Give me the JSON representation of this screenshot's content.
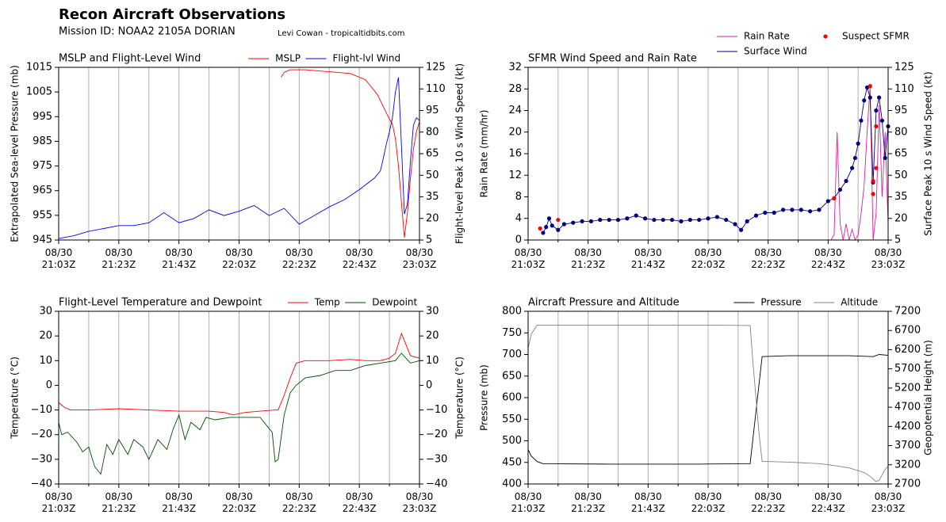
{
  "header": {
    "title": "Recon Aircraft Observations",
    "subtitle": "Mission ID: NOAA2 2105A DORIAN",
    "credit": "Levi Cowan - tropicaltidbits.com"
  },
  "chart_data": [
    {
      "type": "line",
      "title": "MSLP and Flight-Level Wind",
      "ylabel": "Extrapolated Sea-level Pressure (mb)",
      "y2label": "Flight-level Peak 10 s Wind Speed (kt)",
      "legend": "upper right",
      "grid": true,
      "xlim": [
        "21:03",
        "23:03"
      ],
      "xticks": [
        {
          "value": "21:03",
          "label": "08/30 21:03Z"
        },
        {
          "value": "21:23",
          "label": "08/30 21:23Z"
        },
        {
          "value": "21:43",
          "label": "08/30 21:43Z"
        },
        {
          "value": "22:03",
          "label": "08/30 22:03Z"
        },
        {
          "value": "22:23",
          "label": "08/30 22:23Z"
        },
        {
          "value": "22:43",
          "label": "08/30 22:43Z"
        },
        {
          "value": "23:03",
          "label": "08/30 23:03Z"
        }
      ],
      "xminor": [
        "21:13",
        "21:33",
        "21:53",
        "22:13",
        "22:33",
        "22:53"
      ],
      "ylim": [
        945,
        1015
      ],
      "yticks": [
        945,
        955,
        965,
        975,
        985,
        995,
        1005,
        1015
      ],
      "y2lim": [
        5,
        125
      ],
      "y2ticks": [
        5,
        20,
        35,
        50,
        65,
        80,
        95,
        110,
        125
      ],
      "series": [
        {
          "name": "MSLP",
          "color": "#ff0000",
          "x": [
            "22:17",
            "22:18",
            "22:20",
            "22:25",
            "22:30",
            "22:35",
            "22:40",
            "22:45",
            "22:47",
            "22:49",
            "22:51",
            "22:53",
            "22:54",
            "22:55",
            "22:56",
            "22:57",
            "22:58",
            "22:59",
            "23:00",
            "23:01",
            "23:02",
            "23:03"
          ],
          "values": [
            1011,
            1013,
            1014,
            1014,
            1013.5,
            1013,
            1012.5,
            1010,
            1007,
            1004,
            999,
            994,
            992,
            986,
            975,
            960,
            946,
            956,
            970,
            982,
            989,
            993
          ]
        },
        {
          "name": "Flight-lvl Wind",
          "color": "#0000ff",
          "axis": "y2",
          "x": [
            "21:03",
            "21:08",
            "21:13",
            "21:18",
            "21:23",
            "21:28",
            "21:33",
            "21:38",
            "21:43",
            "21:48",
            "21:53",
            "21:58",
            "22:03",
            "22:08",
            "22:13",
            "22:18",
            "22:23",
            "22:28",
            "22:33",
            "22:38",
            "22:43",
            "22:48",
            "22:50",
            "22:51",
            "22:52",
            "22:53",
            "22:54",
            "22:55",
            "22:56",
            "22:57",
            "22:58",
            "22:59",
            "23:00",
            "23:01",
            "23:02",
            "23:03"
          ],
          "values": [
            6,
            8,
            11,
            13,
            15,
            15,
            17,
            24,
            17,
            20,
            26,
            22,
            25,
            29,
            22,
            27,
            16,
            22,
            28,
            33,
            40,
            48,
            53,
            62,
            72,
            80,
            90,
            108,
            118,
            70,
            23,
            30,
            60,
            85,
            90,
            88
          ]
        }
      ]
    },
    {
      "type": "line",
      "title": "SFMR Wind Speed and Rain Rate",
      "ylabel": "Rain Rate (mm/hr)",
      "y2label": "Surface Peak 10 s Wind Speed (kt)",
      "legend": "top outside",
      "grid": true,
      "xlim": [
        "21:03",
        "23:03"
      ],
      "xticks": [
        {
          "value": "21:03",
          "label": "08/30 21:03Z"
        },
        {
          "value": "21:23",
          "label": "08/30 21:23Z"
        },
        {
          "value": "21:43",
          "label": "08/30 21:43Z"
        },
        {
          "value": "22:03",
          "label": "08/30 22:03Z"
        },
        {
          "value": "22:23",
          "label": "08/30 22:23Z"
        },
        {
          "value": "22:43",
          "label": "08/30 22:43Z"
        },
        {
          "value": "23:03",
          "label": "08/30 23:03Z"
        }
      ],
      "xminor": [
        "21:13",
        "21:33",
        "21:53",
        "22:13",
        "22:33",
        "22:53"
      ],
      "ylim": [
        0,
        32
      ],
      "yticks": [
        0,
        4,
        8,
        12,
        16,
        20,
        24,
        28,
        32
      ],
      "y2lim": [
        5,
        125
      ],
      "y2ticks": [
        5,
        20,
        35,
        50,
        65,
        80,
        95,
        110,
        125
      ],
      "series": [
        {
          "name": "Rain Rate",
          "color": "#dd1fa0",
          "x": [
            "21:08",
            "22:40",
            "22:44",
            "22:45",
            "22:46",
            "22:47",
            "22:48",
            "22:49",
            "22:50",
            "22:51",
            "22:52",
            "22:53",
            "22:54",
            "22:55",
            "22:56",
            "22:57",
            "22:58",
            "22:59",
            "23:00",
            "23:01",
            "23:02",
            "23:03"
          ],
          "values": [
            0,
            0,
            0,
            1,
            20,
            3,
            0,
            3,
            0,
            2,
            0,
            1,
            5,
            10,
            20,
            28.5,
            0,
            5,
            25,
            8,
            20,
            3
          ]
        },
        {
          "name": "Surface Wind",
          "color": "#000080",
          "axis": "y2",
          "markers": true,
          "x": [
            "21:08",
            "21:09",
            "21:10",
            "21:11",
            "21:13",
            "21:15",
            "21:18",
            "21:21",
            "21:24",
            "21:27",
            "21:30",
            "21:33",
            "21:36",
            "21:39",
            "21:42",
            "21:45",
            "21:48",
            "21:51",
            "21:54",
            "21:57",
            "22:00",
            "22:03",
            "22:06",
            "22:09",
            "22:12",
            "22:14",
            "22:16",
            "22:19",
            "22:22",
            "22:25",
            "22:28",
            "22:31",
            "22:34",
            "22:37",
            "22:40",
            "22:43",
            "22:45",
            "22:47",
            "22:49",
            "22:51",
            "22:52",
            "22:53",
            "22:54",
            "22:55",
            "22:56",
            "22:57",
            "22:58",
            "22:59",
            "23:00",
            "23:01",
            "23:02",
            "23:03"
          ],
          "values": [
            10,
            14,
            20,
            15,
            12,
            16,
            17,
            18,
            18,
            19,
            19,
            19,
            20,
            22,
            20,
            19,
            19,
            19,
            18,
            19,
            19,
            20,
            21,
            19,
            16,
            12,
            18,
            22,
            24,
            24,
            26,
            26,
            26,
            25,
            26,
            32,
            34,
            40,
            46,
            55,
            62,
            72,
            88,
            102,
            111,
            104,
            45,
            95,
            104,
            88,
            62,
            84
          ]
        },
        {
          "name": "Suspect SFMR",
          "color": "#ff0000",
          "axis": "y2",
          "line": false,
          "markers": true,
          "x": [
            "21:07",
            "21:13",
            "22:45",
            "22:57",
            "22:58",
            "22:58",
            "22:59",
            "22:59"
          ],
          "values": [
            13,
            19,
            34,
            112,
            46,
            37,
            55,
            84
          ]
        }
      ]
    },
    {
      "type": "line",
      "title": "Flight-Level Temperature and Dewpoint",
      "ylabel": "Temperature (°C)",
      "y2label": "Temperature (°C)",
      "legend": "upper right",
      "grid": true,
      "xlim": [
        "21:03",
        "23:03"
      ],
      "xticks": [
        {
          "value": "21:03",
          "label": "08/30 21:03Z"
        },
        {
          "value": "21:23",
          "label": "08/30 21:23Z"
        },
        {
          "value": "21:43",
          "label": "08/30 21:43Z"
        },
        {
          "value": "22:03",
          "label": "08/30 22:03Z"
        },
        {
          "value": "22:23",
          "label": "08/30 22:23Z"
        },
        {
          "value": "22:43",
          "label": "08/30 22:43Z"
        },
        {
          "value": "23:03",
          "label": "08/30 23:03Z"
        }
      ],
      "xminor": [
        "21:13",
        "21:33",
        "21:53",
        "22:13",
        "22:33",
        "22:53"
      ],
      "ylim": [
        -40,
        30
      ],
      "yticks": [
        {
          "value": -40,
          "label": "−40"
        },
        {
          "value": -30,
          "label": "−30"
        },
        {
          "value": -20,
          "label": "−20"
        },
        {
          "value": -10,
          "label": "−10"
        },
        0,
        10,
        20,
        30
      ],
      "y2lim": [
        -40,
        30
      ],
      "y2ticks": [
        {
          "value": -40,
          "label": "−40"
        },
        {
          "value": -30,
          "label": "−30"
        },
        {
          "value": -20,
          "label": "−20"
        },
        {
          "value": -10,
          "label": "−10"
        },
        0,
        10,
        20,
        30
      ],
      "series": [
        {
          "name": "Temp",
          "color": "#ff0000",
          "x": [
            "21:03",
            "21:05",
            "21:07",
            "21:13",
            "21:23",
            "21:33",
            "21:43",
            "21:53",
            "21:58",
            "22:01",
            "22:05",
            "22:10",
            "22:15",
            "22:16",
            "22:18",
            "22:20",
            "22:22",
            "22:25",
            "22:33",
            "22:40",
            "22:45",
            "22:50",
            "22:53",
            "22:55",
            "22:57",
            "22:59",
            "23:00",
            "23:03"
          ],
          "values": [
            -7,
            -9,
            -10,
            -10,
            -9.5,
            -10,
            -10.5,
            -10.5,
            -11,
            -12,
            -11,
            -10.5,
            -10,
            -10,
            -4,
            3,
            9,
            10,
            10,
            10.5,
            10,
            10,
            11,
            13,
            21,
            15,
            12,
            11
          ]
        },
        {
          "name": "Dewpoint",
          "color": "#004d00",
          "x": [
            "21:03",
            "21:04",
            "21:06",
            "21:09",
            "21:11",
            "21:13",
            "21:15",
            "21:17",
            "21:19",
            "21:21",
            "21:23",
            "21:26",
            "21:28",
            "21:31",
            "21:33",
            "21:36",
            "21:39",
            "21:41",
            "21:43",
            "21:45",
            "21:47",
            "21:50",
            "21:52",
            "21:55",
            "22:00",
            "22:05",
            "22:10",
            "22:12",
            "22:14",
            "22:15",
            "22:16",
            "22:18",
            "22:20",
            "22:22",
            "22:25",
            "22:30",
            "22:35",
            "22:40",
            "22:45",
            "22:50",
            "22:55",
            "22:57",
            "23:00",
            "23:03"
          ],
          "values": [
            -15,
            -20,
            -19,
            -23,
            -27,
            -25,
            -33,
            -36,
            -24,
            -28,
            -22,
            -28,
            -22,
            -25,
            -30,
            -22,
            -26,
            -18,
            -12,
            -22,
            -15,
            -18,
            -13,
            -14,
            -13,
            -13,
            -13,
            -16,
            -19,
            -31,
            -30,
            -12,
            -3,
            0,
            3,
            4,
            6,
            6,
            8,
            9,
            10,
            13,
            9,
            10
          ]
        }
      ]
    },
    {
      "type": "line",
      "title": "Aircraft Pressure and Altitude",
      "ylabel": "Pressure (mb)",
      "y2label": "Geopotential Height (m)",
      "legend": "upper right",
      "grid": true,
      "xlim": [
        "21:03",
        "23:03"
      ],
      "xticks": [
        {
          "value": "21:03",
          "label": "08/30 21:03Z"
        },
        {
          "value": "21:23",
          "label": "08/30 21:23Z"
        },
        {
          "value": "21:43",
          "label": "08/30 21:43Z"
        },
        {
          "value": "22:03",
          "label": "08/30 22:03Z"
        },
        {
          "value": "22:23",
          "label": "08/30 22:23Z"
        },
        {
          "value": "22:43",
          "label": "08/30 22:43Z"
        },
        {
          "value": "23:03",
          "label": "08/30 23:03Z"
        }
      ],
      "xminor": [
        "21:13",
        "21:33",
        "21:53",
        "22:13",
        "22:33",
        "22:53"
      ],
      "ylim": [
        400,
        800
      ],
      "yticks": [
        400,
        450,
        500,
        550,
        600,
        650,
        700,
        750,
        800
      ],
      "y2lim": [
        2700,
        7200
      ],
      "y2ticks": [
        2700,
        3200,
        3700,
        4200,
        4700,
        5200,
        5700,
        6200,
        6700,
        7200
      ],
      "series": [
        {
          "name": "Pressure",
          "color": "#000000",
          "x": [
            "21:03",
            "21:04",
            "21:06",
            "21:08",
            "21:30",
            "22:00",
            "22:17",
            "22:21",
            "22:30",
            "22:50",
            "22:58",
            "23:00",
            "23:03"
          ],
          "values": [
            480,
            465,
            452,
            447,
            446,
            446,
            447,
            695,
            697,
            697,
            695,
            700,
            698
          ]
        },
        {
          "name": "Altitude",
          "color": "#808080",
          "axis": "y2",
          "x": [
            "21:03",
            "21:04",
            "21:06",
            "21:30",
            "22:00",
            "22:17",
            "22:18",
            "22:20",
            "22:21",
            "22:30",
            "22:40",
            "22:45",
            "22:50",
            "22:55",
            "22:57",
            "22:59",
            "23:00",
            "23:02",
            "23:03"
          ],
          "values": [
            6230,
            6600,
            6840,
            6840,
            6840,
            6830,
            5800,
            4000,
            3290,
            3270,
            3230,
            3180,
            3120,
            3000,
            2900,
            2760,
            2800,
            3080,
            3150
          ]
        }
      ]
    }
  ]
}
